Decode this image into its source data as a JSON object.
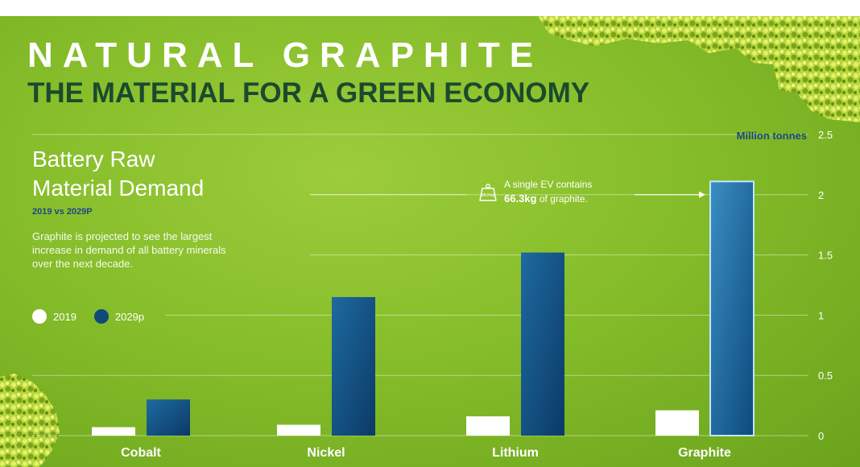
{
  "header": {
    "title": "NATURAL GRAPHITE",
    "subtitle": "THE MATERIAL FOR A GREEN ECONOMY"
  },
  "panel": {
    "title_line1": "Battery Raw",
    "title_line2": "Material Demand",
    "period": "2019 vs 2029P",
    "description": "Graphite is projected to see the largest increase in demand of all battery minerals over the next decade."
  },
  "callout": {
    "icon": "weight-icon",
    "icon_text": "66.3 kg",
    "line1": "A single EV contains",
    "bold": "66.3kg",
    "rest": " of graphite."
  },
  "colors": {
    "background": "#86bd2a",
    "series_2019": "#ffffff",
    "series_2029": "#0f4a78",
    "highlight_border": "#bfe8ff"
  },
  "chart_data": {
    "type": "bar",
    "unit_label": "Million tonnes",
    "categories": [
      "Cobalt",
      "Nickel",
      "Lithium",
      "Graphite"
    ],
    "series": [
      {
        "name": "2019",
        "values": [
          0.07,
          0.09,
          0.16,
          0.21
        ]
      },
      {
        "name": "2029p",
        "values": [
          0.3,
          1.15,
          1.52,
          2.11
        ]
      }
    ],
    "ylim": [
      0,
      2.5
    ],
    "yticks": [
      0,
      0.5,
      1,
      1.5,
      2,
      2.5
    ],
    "ytick_labels": [
      "0",
      "0.5",
      "1",
      "1.5",
      "2",
      "2.5"
    ],
    "grid": true,
    "legend_position": "left",
    "highlighted_category": "Graphite"
  }
}
